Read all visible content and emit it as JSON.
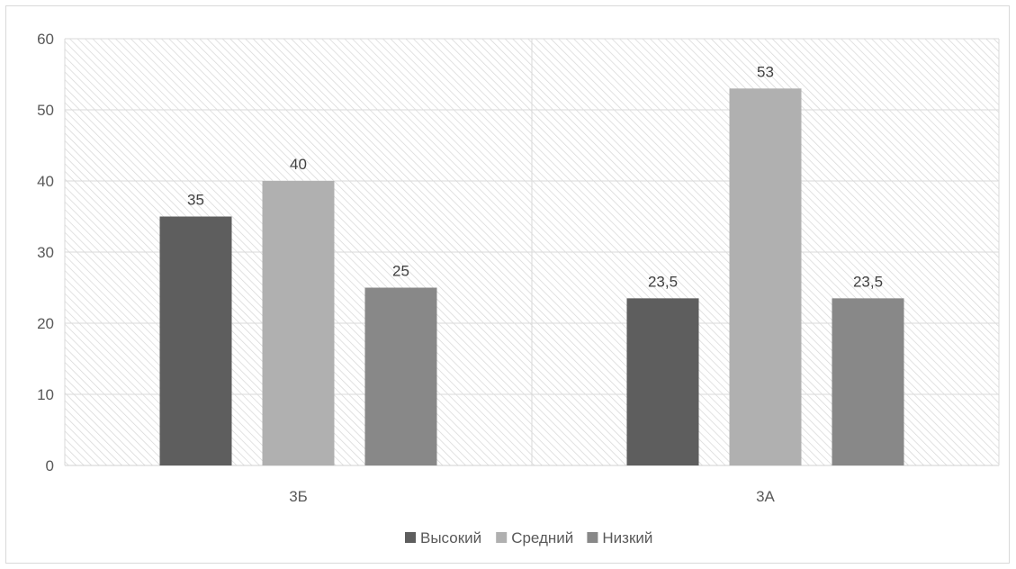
{
  "chart_data": {
    "type": "bar",
    "categories": [
      "3Б",
      "3А"
    ],
    "series": [
      {
        "name": "Высокий",
        "values": [
          35,
          23.5
        ],
        "color": "#5e5e5e"
      },
      {
        "name": "Средний",
        "values": [
          40,
          53
        ],
        "color": "#b0b0b0"
      },
      {
        "name": "Низкий",
        "values": [
          25,
          23.5
        ],
        "color": "#888888"
      }
    ],
    "data_labels": [
      [
        "35",
        "23,5"
      ],
      [
        "40",
        "53"
      ],
      [
        "25",
        "23,5"
      ]
    ],
    "ylim": [
      0,
      60
    ],
    "yticks": [
      0,
      10,
      20,
      30,
      40,
      50,
      60
    ],
    "title": "",
    "xlabel": "",
    "ylabel": "",
    "grid": true,
    "plot_background": "diagonal-hatch",
    "legend_position": "bottom"
  }
}
